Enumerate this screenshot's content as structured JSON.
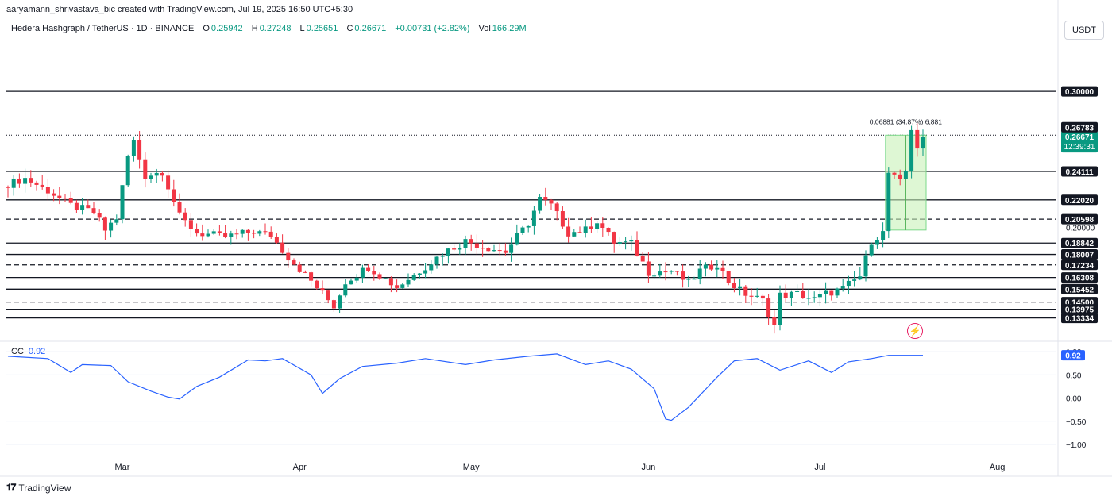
{
  "credit": "aaryamann_shrivastava_bic created with TradingView.com, Jul 19, 2025 16:50 UTC+5:30",
  "legend": {
    "symbol": "Hedera Hashgraph / TetherUS · 1D · BINANCE",
    "o_label": "O",
    "o": "0.25942",
    "h_label": "H",
    "h": "0.27248",
    "l_label": "L",
    "l": "0.25651",
    "c_label": "C",
    "c": "0.26671",
    "change": "+0.00731 (+2.82%)",
    "vol_label": "Vol",
    "vol": "166.29M"
  },
  "currency_button": "USDT",
  "indicator": {
    "name": "CC",
    "value": "0.92"
  },
  "brand": "TradingView",
  "colors": {
    "up": "#089981",
    "down": "#f23645",
    "cc_line": "#2962ff",
    "measure_fill": "#c8f2b8",
    "flash": "#e91e63"
  },
  "icons": {
    "flash": "lightning-icon",
    "logo": "tradingview-logo-icon"
  },
  "chart_data": [
    {
      "type": "candlestick",
      "title": "Hedera Hashgraph / TetherUS",
      "ylim": [
        0.122,
        0.31
      ],
      "x_tick_labels": [
        "Mar",
        "Apr",
        "May",
        "Jun",
        "Jul",
        "Aug"
      ],
      "x_tick_dates": [
        "2025-03-01",
        "2025-04-01",
        "2025-05-01",
        "2025-06-01",
        "2025-07-01",
        "2025-08-01"
      ],
      "start_date": "2025-02-09",
      "end_date": "2025-07-19",
      "price_label": {
        "value": "0.26671",
        "countdown": "12:39:31"
      },
      "axis_label_top": "0.26783",
      "secondary_price_label": "0.20000",
      "horizontal_levels": [
        {
          "value": 0.3,
          "label": "0.30000",
          "style": "solid"
        },
        {
          "value": 0.24111,
          "label": "0.24111",
          "style": "solid"
        },
        {
          "value": 0.2202,
          "label": "0.22020",
          "style": "solid"
        },
        {
          "value": 0.20598,
          "label": "0.20598",
          "style": "dashed"
        },
        {
          "value": 0.18842,
          "label": "0.18842",
          "style": "solid"
        },
        {
          "value": 0.18007,
          "label": "0.18007",
          "style": "solid"
        },
        {
          "value": 0.17234,
          "label": "0.17234",
          "style": "dashed"
        },
        {
          "value": 0.16308,
          "label": "0.16308",
          "style": "solid"
        },
        {
          "value": 0.15452,
          "label": "0.15452",
          "style": "solid"
        },
        {
          "value": 0.145,
          "label": "0.14500",
          "style": "dashed"
        },
        {
          "value": 0.13975,
          "label": "0.13975",
          "style": "solid"
        },
        {
          "value": 0.13334,
          "label": "0.13334",
          "style": "solid"
        }
      ],
      "measure": {
        "from_date": "2025-07-13",
        "to_date": "2025-07-19",
        "low": 0.198,
        "high": 0.2678,
        "label": "0.06881 (34.87%) 6,881"
      },
      "anchors": [
        {
          "d": "2025-02-09",
          "c": 0.232
        },
        {
          "d": "2025-02-12",
          "c": 0.236
        },
        {
          "d": "2025-02-16",
          "c": 0.227
        },
        {
          "d": "2025-02-20",
          "c": 0.216
        },
        {
          "d": "2025-02-24",
          "c": 0.211
        },
        {
          "d": "2025-02-26",
          "c": 0.198
        },
        {
          "d": "2025-02-28",
          "c": 0.207
        },
        {
          "d": "2025-03-02",
          "c": 0.252
        },
        {
          "d": "2025-03-03",
          "c": 0.263
        },
        {
          "d": "2025-03-05",
          "c": 0.238
        },
        {
          "d": "2025-03-08",
          "c": 0.241
        },
        {
          "d": "2025-03-11",
          "c": 0.208
        },
        {
          "d": "2025-03-14",
          "c": 0.196
        },
        {
          "d": "2025-03-19",
          "c": 0.193
        },
        {
          "d": "2025-03-24",
          "c": 0.197
        },
        {
          "d": "2025-03-27",
          "c": 0.194
        },
        {
          "d": "2025-03-30",
          "c": 0.178
        },
        {
          "d": "2025-04-02",
          "c": 0.165
        },
        {
          "d": "2025-04-07",
          "c": 0.142
        },
        {
          "d": "2025-04-09",
          "c": 0.16
        },
        {
          "d": "2025-04-13",
          "c": 0.171
        },
        {
          "d": "2025-04-16",
          "c": 0.162
        },
        {
          "d": "2025-04-18",
          "c": 0.156
        },
        {
          "d": "2025-04-22",
          "c": 0.168
        },
        {
          "d": "2025-04-26",
          "c": 0.181
        },
        {
          "d": "2025-04-30",
          "c": 0.19
        },
        {
          "d": "2025-05-03",
          "c": 0.186
        },
        {
          "d": "2025-05-07",
          "c": 0.182
        },
        {
          "d": "2025-05-09",
          "c": 0.193
        },
        {
          "d": "2025-05-11",
          "c": 0.203
        },
        {
          "d": "2025-05-13",
          "c": 0.221
        },
        {
          "d": "2025-05-15",
          "c": 0.216
        },
        {
          "d": "2025-05-18",
          "c": 0.196
        },
        {
          "d": "2025-05-21",
          "c": 0.198
        },
        {
          "d": "2025-05-23",
          "c": 0.205
        },
        {
          "d": "2025-05-26",
          "c": 0.189
        },
        {
          "d": "2025-05-29",
          "c": 0.188
        },
        {
          "d": "2025-06-01",
          "c": 0.167
        },
        {
          "d": "2025-06-05",
          "c": 0.168
        },
        {
          "d": "2025-06-08",
          "c": 0.159
        },
        {
          "d": "2025-06-10",
          "c": 0.168
        },
        {
          "d": "2025-06-13",
          "c": 0.173
        },
        {
          "d": "2025-06-15",
          "c": 0.16
        },
        {
          "d": "2025-06-18",
          "c": 0.151
        },
        {
          "d": "2025-06-21",
          "c": 0.146
        },
        {
          "d": "2025-06-23",
          "c": 0.128
        },
        {
          "d": "2025-06-24",
          "c": 0.15
        },
        {
          "d": "2025-06-27",
          "c": 0.151
        },
        {
          "d": "2025-06-30",
          "c": 0.147
        },
        {
          "d": "2025-07-02",
          "c": 0.151
        },
        {
          "d": "2025-07-05",
          "c": 0.155
        },
        {
          "d": "2025-07-08",
          "c": 0.164
        },
        {
          "d": "2025-07-10",
          "c": 0.19
        },
        {
          "d": "2025-07-12",
          "c": 0.196
        },
        {
          "d": "2025-07-13",
          "c": 0.24
        },
        {
          "d": "2025-07-15",
          "c": 0.233
        },
        {
          "d": "2025-07-16",
          "c": 0.241
        },
        {
          "d": "2025-07-17",
          "c": 0.273
        },
        {
          "d": "2025-07-18",
          "c": 0.259
        },
        {
          "d": "2025-07-19",
          "c": 0.2667
        }
      ]
    },
    {
      "type": "line",
      "title": "CC",
      "ylim": [
        -1.05,
        1.0
      ],
      "y_ticks": [
        -1.0,
        -0.5,
        0.0,
        0.5,
        1.0
      ],
      "y_tick_labels": [
        "−1.00",
        "−0.50",
        "0.00",
        "0.50",
        "1.00"
      ],
      "reference_lines": [
        {
          "value": 1.0,
          "style": "dashed"
        }
      ],
      "last_value_label": "0.92",
      "series": [
        {
          "points": [
            {
              "d": "2025-02-09",
              "y": 0.9
            },
            {
              "d": "2025-02-16",
              "y": 0.85
            },
            {
              "d": "2025-02-20",
              "y": 0.55
            },
            {
              "d": "2025-02-22",
              "y": 0.72
            },
            {
              "d": "2025-02-27",
              "y": 0.7
            },
            {
              "d": "2025-03-02",
              "y": 0.35
            },
            {
              "d": "2025-03-06",
              "y": 0.15
            },
            {
              "d": "2025-03-09",
              "y": 0.02
            },
            {
              "d": "2025-03-11",
              "y": -0.02
            },
            {
              "d": "2025-03-14",
              "y": 0.25
            },
            {
              "d": "2025-03-18",
              "y": 0.45
            },
            {
              "d": "2025-03-23",
              "y": 0.82
            },
            {
              "d": "2025-03-26",
              "y": 0.8
            },
            {
              "d": "2025-03-29",
              "y": 0.85
            },
            {
              "d": "2025-04-03",
              "y": 0.5
            },
            {
              "d": "2025-04-05",
              "y": 0.1
            },
            {
              "d": "2025-04-08",
              "y": 0.42
            },
            {
              "d": "2025-04-12",
              "y": 0.68
            },
            {
              "d": "2025-04-18",
              "y": 0.75
            },
            {
              "d": "2025-04-23",
              "y": 0.85
            },
            {
              "d": "2025-04-30",
              "y": 0.72
            },
            {
              "d": "2025-05-05",
              "y": 0.82
            },
            {
              "d": "2025-05-11",
              "y": 0.9
            },
            {
              "d": "2025-05-16",
              "y": 0.95
            },
            {
              "d": "2025-05-21",
              "y": 0.72
            },
            {
              "d": "2025-05-25",
              "y": 0.8
            },
            {
              "d": "2025-05-29",
              "y": 0.62
            },
            {
              "d": "2025-06-02",
              "y": 0.2
            },
            {
              "d": "2025-06-04",
              "y": -0.45
            },
            {
              "d": "2025-06-05",
              "y": -0.48
            },
            {
              "d": "2025-06-08",
              "y": -0.2
            },
            {
              "d": "2025-06-13",
              "y": 0.45
            },
            {
              "d": "2025-06-16",
              "y": 0.8
            },
            {
              "d": "2025-06-20",
              "y": 0.85
            },
            {
              "d": "2025-06-24",
              "y": 0.6
            },
            {
              "d": "2025-06-29",
              "y": 0.8
            },
            {
              "d": "2025-07-03",
              "y": 0.55
            },
            {
              "d": "2025-07-06",
              "y": 0.78
            },
            {
              "d": "2025-07-10",
              "y": 0.85
            },
            {
              "d": "2025-07-13",
              "y": 0.92
            },
            {
              "d": "2025-07-16",
              "y": 0.92
            },
            {
              "d": "2025-07-19",
              "y": 0.92
            }
          ]
        }
      ]
    }
  ]
}
